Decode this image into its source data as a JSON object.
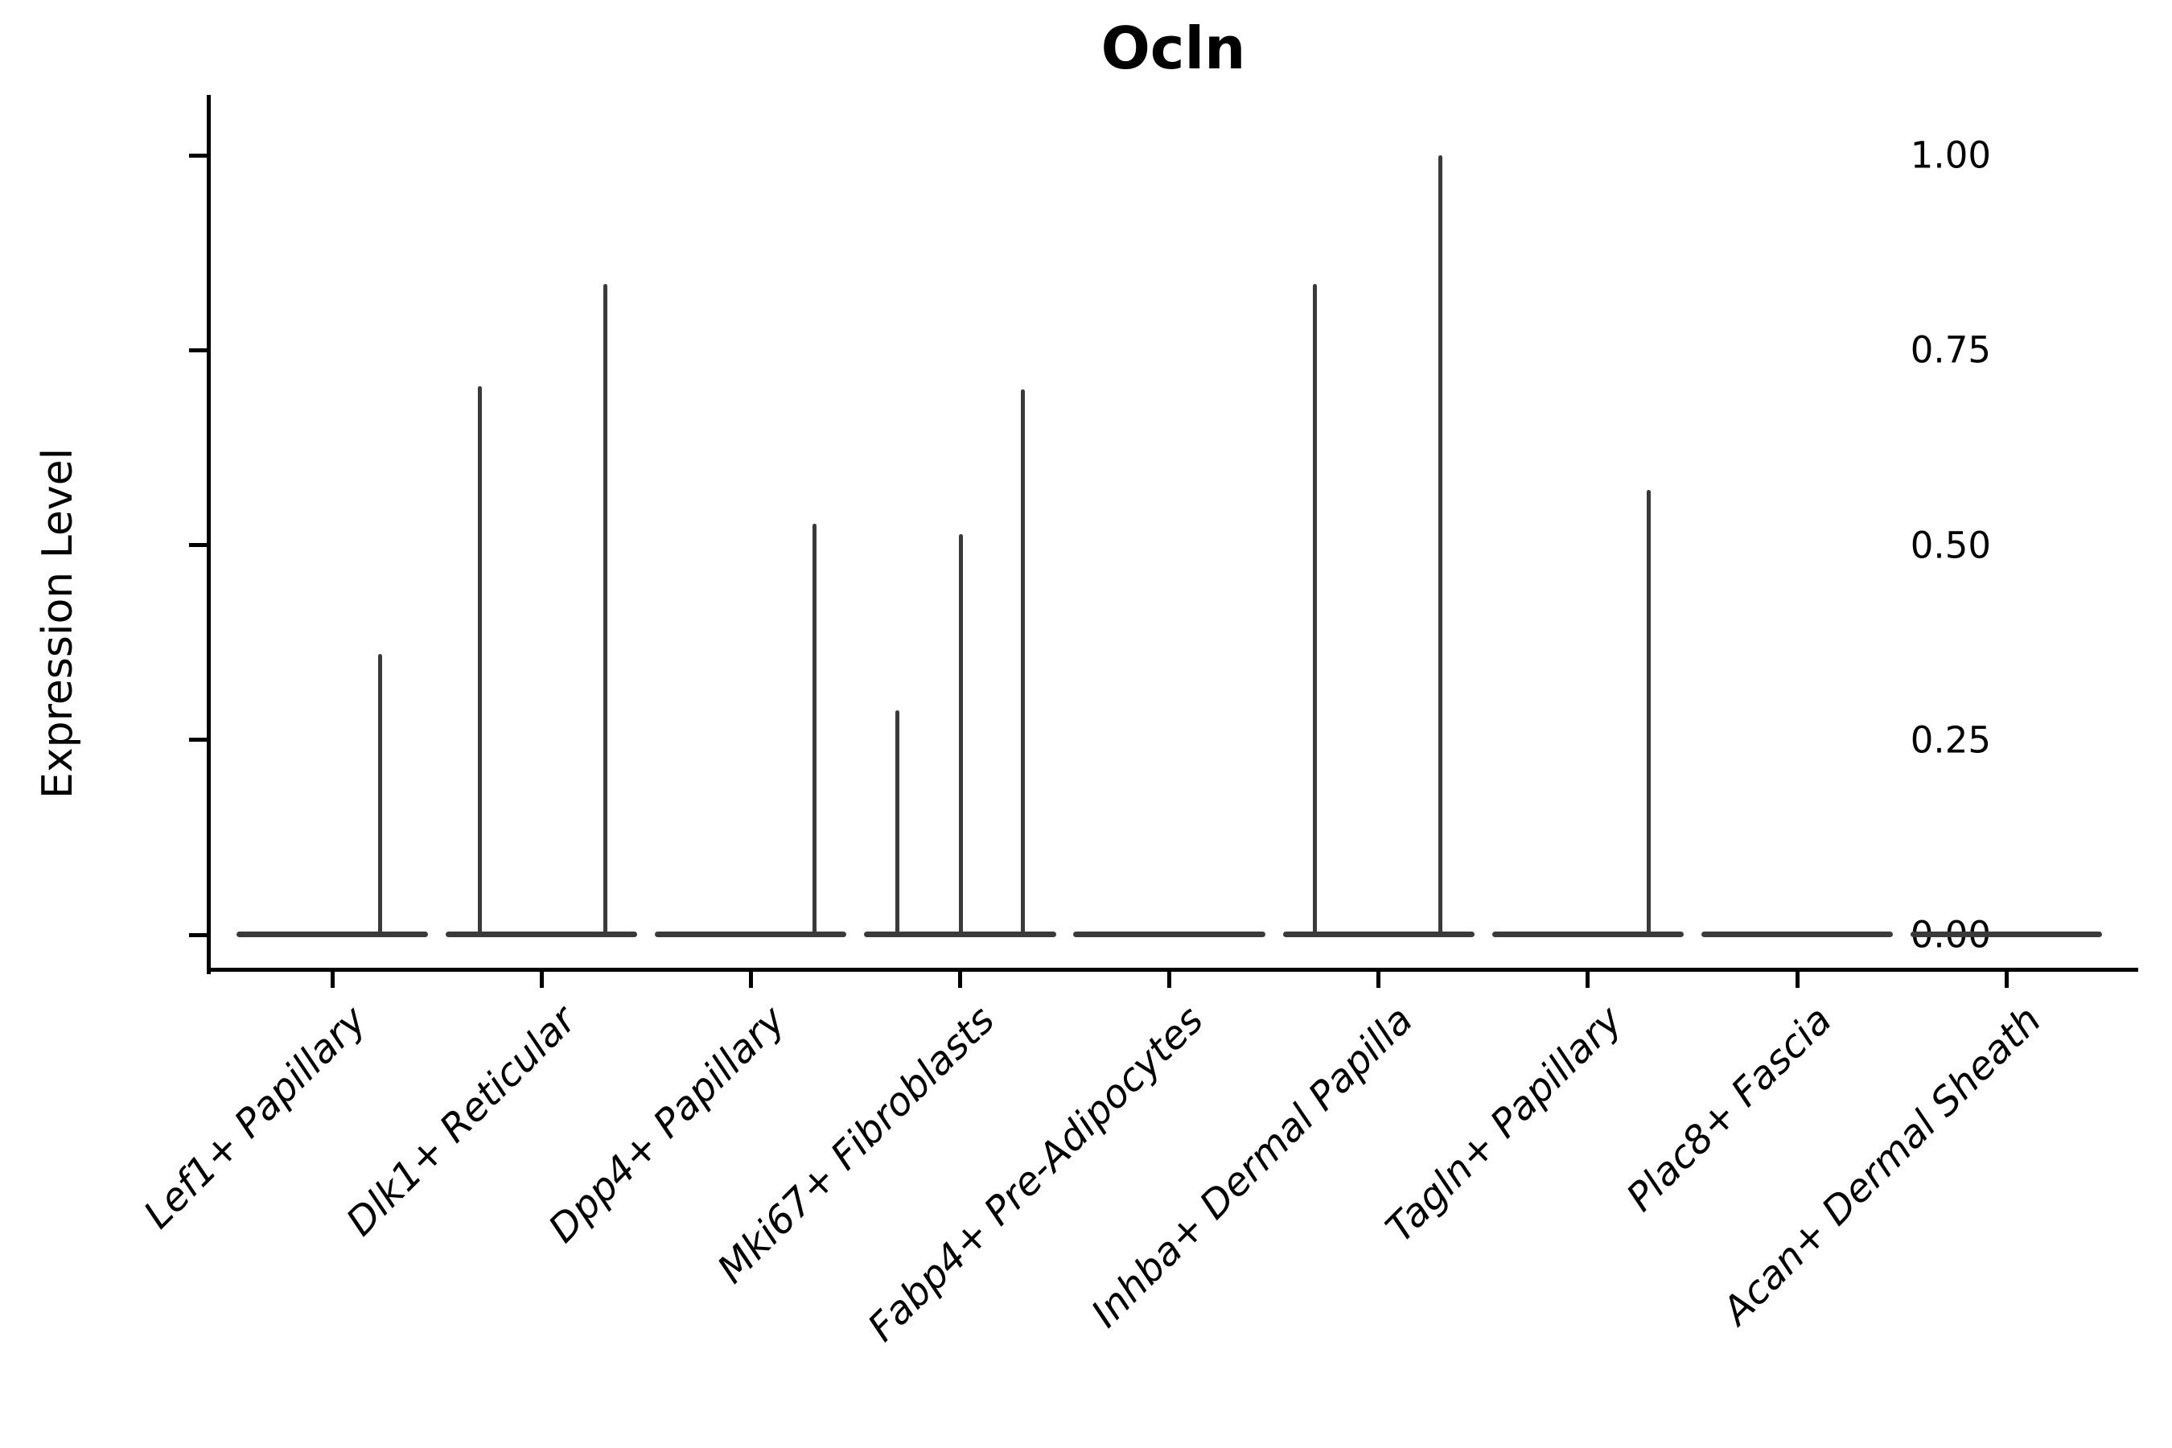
{
  "figure": {
    "background": "#ffffff",
    "axis_color": "#000000",
    "violin_color": "#3a3a3a"
  },
  "chart_data": {
    "type": "violin",
    "title": "Ocln",
    "xlabel": "",
    "ylabel": "Expression Level",
    "ylim": [
      0,
      1.0
    ],
    "grid": false,
    "legend": "none",
    "yticks": [
      {
        "label": "0.00",
        "value": 0.0
      },
      {
        "label": "0.25",
        "value": 0.25
      },
      {
        "label": "0.50",
        "value": 0.5
      },
      {
        "label": "0.75",
        "value": 0.75
      },
      {
        "label": "1.00",
        "value": 1.0
      }
    ],
    "categories": [
      "Lef1+ Papillary",
      "Dlk1+ Reticular",
      "Dpp4+ Papillary",
      "Mki67+ Fibroblasts",
      "Fabp4+ Pre-Adipocytes",
      "Inhba+ Dermal Papilla",
      "Tagln+ Papillary",
      "Plac8+ Fascia",
      "Acan+ Dermal Sheath"
    ],
    "zero_body_halfwidth_frac": 0.458,
    "violins": [
      {
        "category": "Lef1+ Papillary",
        "zero_body": true,
        "spikes": [
          {
            "dx_frac": 0.23,
            "max": 0.36
          }
        ]
      },
      {
        "category": "Dlk1+ Reticular",
        "zero_body": true,
        "spikes": [
          {
            "dx_frac": -0.296,
            "max": 0.704
          },
          {
            "dx_frac": 0.304,
            "max": 0.835
          }
        ]
      },
      {
        "category": "Dpp4+ Papillary",
        "zero_body": true,
        "spikes": [
          {
            "dx_frac": 0.304,
            "max": 0.527
          }
        ]
      },
      {
        "category": "Mki67+ Fibroblasts",
        "zero_body": true,
        "spikes": [
          {
            "dx_frac": -0.3,
            "max": 0.288
          },
          {
            "dx_frac": 0.004,
            "max": 0.514
          },
          {
            "dx_frac": 0.3,
            "max": 0.7
          }
        ]
      },
      {
        "category": "Fabp4+ Pre-Adipocytes",
        "zero_body": true,
        "spikes": []
      },
      {
        "category": "Inhba+ Dermal Papilla",
        "zero_body": true,
        "spikes": [
          {
            "dx_frac": -0.304,
            "max": 0.835
          },
          {
            "dx_frac": 0.296,
            "max": 1.0
          }
        ]
      },
      {
        "category": "Tagln+ Papillary",
        "zero_body": true,
        "spikes": [
          {
            "dx_frac": 0.292,
            "max": 0.571
          }
        ]
      },
      {
        "category": "Plac8+ Fascia",
        "zero_body": true,
        "spikes": []
      },
      {
        "category": "Acan+ Dermal Sheath",
        "zero_body": true,
        "spikes": []
      }
    ]
  }
}
